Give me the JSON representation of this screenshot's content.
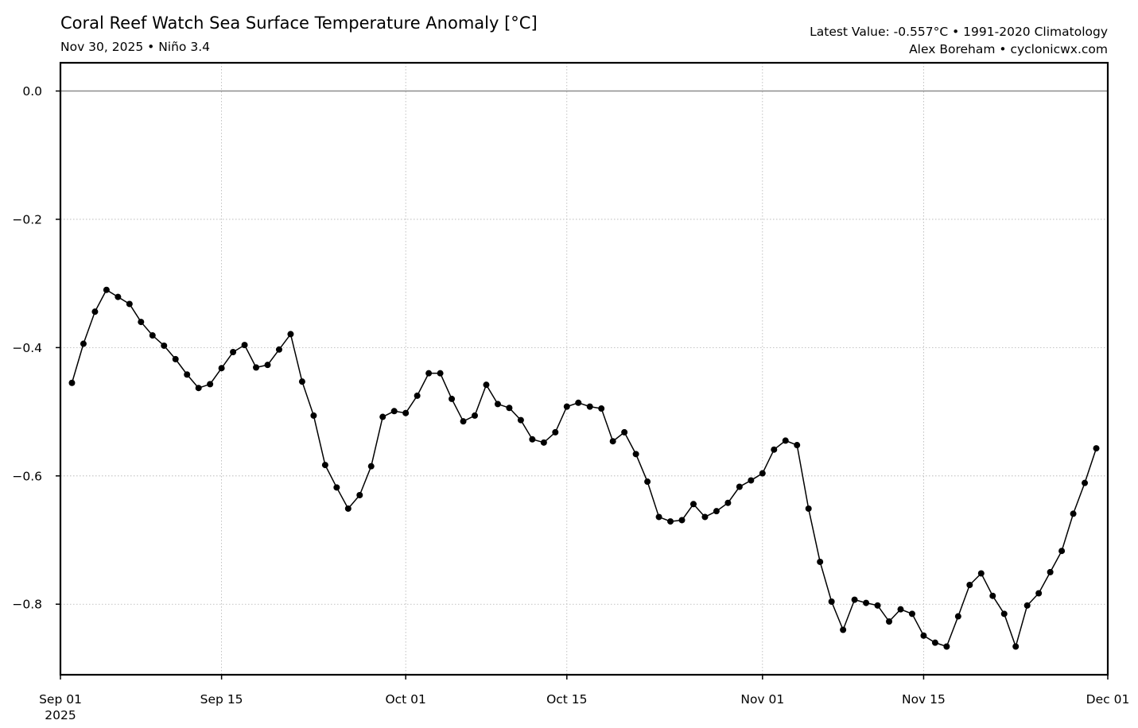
{
  "header": {
    "title": "Coral Reef Watch Sea Surface Temperature Anomaly [°C]",
    "subtitle": "Nov 30, 2025 • Niño 3.4",
    "latest_value": "Latest Value: -0.557°C • 1991-2020 Climatology",
    "credit": "Alex Boreham • cyclonicwx.com"
  },
  "chart_data": {
    "type": "line",
    "title": "Coral Reef Watch Sea Surface Temperature Anomaly [°C]",
    "subtitle": "Nov 30, 2025 • Niño 3.4",
    "xlabel": "",
    "ylabel": "",
    "grid": true,
    "line_color": "#000000",
    "marker": "circle",
    "xlim": [
      "2025-09-01",
      "2025-12-01"
    ],
    "ylim": [
      -0.91,
      0.044
    ],
    "x_ticks": [
      {
        "date": "2025-09-01",
        "label": "Sep 01",
        "sublabel": "2025"
      },
      {
        "date": "2025-09-15",
        "label": "Sep 15"
      },
      {
        "date": "2025-10-01",
        "label": "Oct 01"
      },
      {
        "date": "2025-10-15",
        "label": "Oct 15"
      },
      {
        "date": "2025-11-01",
        "label": "Nov 01"
      },
      {
        "date": "2025-11-15",
        "label": "Nov 15"
      },
      {
        "date": "2025-12-01",
        "label": "Dec 01"
      }
    ],
    "y_ticks": [
      {
        "value": 0.0,
        "label": "0.0"
      },
      {
        "value": -0.2,
        "label": "−0.2"
      },
      {
        "value": -0.4,
        "label": "−0.4"
      },
      {
        "value": -0.6,
        "label": "−0.6"
      },
      {
        "value": -0.8,
        "label": "−0.8"
      }
    ],
    "reference_line": 0.0,
    "series": [
      {
        "x": [
          "2025-09-02",
          "2025-09-03",
          "2025-09-04",
          "2025-09-05",
          "2025-09-06",
          "2025-09-07",
          "2025-09-08",
          "2025-09-09",
          "2025-09-10",
          "2025-09-11",
          "2025-09-12",
          "2025-09-13",
          "2025-09-14",
          "2025-09-15",
          "2025-09-16",
          "2025-09-17",
          "2025-09-18",
          "2025-09-19",
          "2025-09-20",
          "2025-09-21",
          "2025-09-22",
          "2025-09-23",
          "2025-09-24",
          "2025-09-25",
          "2025-09-26",
          "2025-09-27",
          "2025-09-28",
          "2025-09-29",
          "2025-09-30",
          "2025-10-01",
          "2025-10-02",
          "2025-10-03",
          "2025-10-04",
          "2025-10-05",
          "2025-10-06",
          "2025-10-07",
          "2025-10-08",
          "2025-10-09",
          "2025-10-10",
          "2025-10-11",
          "2025-10-12",
          "2025-10-13",
          "2025-10-14",
          "2025-10-15",
          "2025-10-16",
          "2025-10-17",
          "2025-10-18",
          "2025-10-19",
          "2025-10-20",
          "2025-10-21",
          "2025-10-22",
          "2025-10-23",
          "2025-10-24",
          "2025-10-25",
          "2025-10-26",
          "2025-10-27",
          "2025-10-28",
          "2025-10-29",
          "2025-10-30",
          "2025-10-31",
          "2025-11-01",
          "2025-11-02",
          "2025-11-03",
          "2025-11-04",
          "2025-11-05",
          "2025-11-06",
          "2025-11-07",
          "2025-11-08",
          "2025-11-09",
          "2025-11-10",
          "2025-11-11",
          "2025-11-12",
          "2025-11-13",
          "2025-11-14",
          "2025-11-15",
          "2025-11-16",
          "2025-11-17",
          "2025-11-18",
          "2025-11-19",
          "2025-11-20",
          "2025-11-21",
          "2025-11-22",
          "2025-11-23",
          "2025-11-24",
          "2025-11-25",
          "2025-11-26",
          "2025-11-27",
          "2025-11-28",
          "2025-11-29",
          "2025-11-30"
        ],
        "values": [
          -0.455,
          -0.394,
          -0.344,
          -0.31,
          -0.321,
          -0.332,
          -0.36,
          -0.381,
          -0.397,
          -0.418,
          -0.442,
          -0.463,
          -0.457,
          -0.432,
          -0.407,
          -0.396,
          -0.431,
          -0.427,
          -0.403,
          -0.379,
          -0.453,
          -0.506,
          -0.583,
          -0.618,
          -0.651,
          -0.63,
          -0.585,
          -0.508,
          -0.499,
          -0.502,
          -0.475,
          -0.44,
          -0.44,
          -0.48,
          -0.515,
          -0.506,
          -0.458,
          -0.488,
          -0.494,
          -0.513,
          -0.543,
          -0.548,
          -0.532,
          -0.492,
          -0.486,
          -0.492,
          -0.495,
          -0.546,
          -0.532,
          -0.566,
          -0.609,
          -0.664,
          -0.671,
          -0.669,
          -0.644,
          -0.664,
          -0.655,
          -0.642,
          -0.617,
          -0.607,
          -0.596,
          -0.559,
          -0.545,
          -0.552,
          -0.651,
          -0.734,
          -0.796,
          -0.84,
          -0.793,
          -0.798,
          -0.802,
          -0.827,
          -0.808,
          -0.815,
          -0.849,
          -0.86,
          -0.866,
          -0.819,
          -0.77,
          -0.752,
          -0.787,
          -0.815,
          -0.866,
          -0.802,
          -0.783,
          -0.75,
          -0.717,
          -0.659,
          -0.611,
          -0.557
        ]
      }
    ]
  }
}
